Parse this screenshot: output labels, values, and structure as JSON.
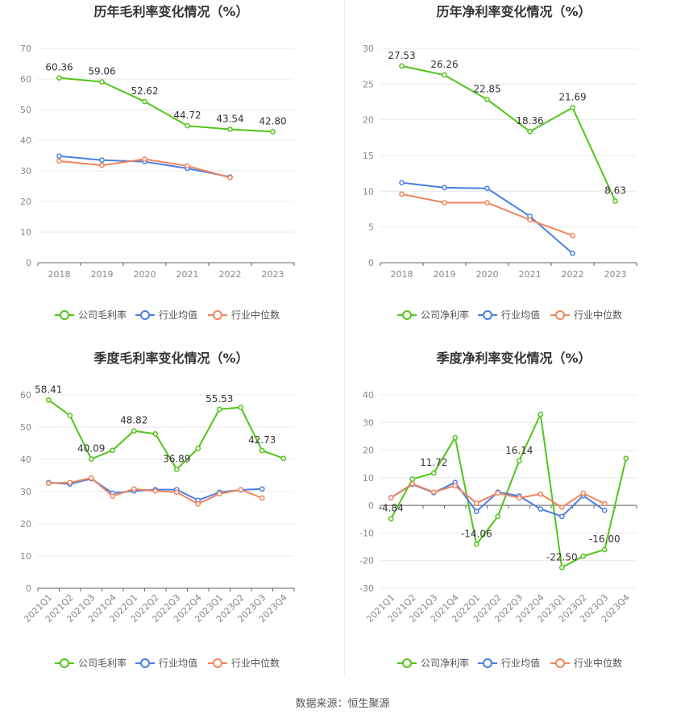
{
  "source_text": "数据来源：恒生聚源",
  "chart_data": [
    {
      "type": "line",
      "title": "历年毛利率变化情况（%）",
      "categories": [
        "2018",
        "2019",
        "2020",
        "2021",
        "2022",
        "2023"
      ],
      "ylim": [
        0,
        70
      ],
      "yticks": [
        0,
        10,
        20,
        30,
        40,
        50,
        60,
        70
      ],
      "grid": true,
      "legend_position": "bottom",
      "rotate_xticks": false,
      "series": [
        {
          "name": "公司毛利率",
          "color": "#52c41a",
          "values": [
            60.36,
            59.06,
            52.62,
            44.72,
            43.54,
            42.8
          ],
          "labels": [
            "60.36",
            "59.06",
            "52.62",
            "44.72",
            "43.54",
            "42.80"
          ]
        },
        {
          "name": "行业均值",
          "color": "#4a7fe0",
          "values": [
            34.8,
            33.5,
            33.0,
            30.8,
            28.0,
            null
          ]
        },
        {
          "name": "行业中位数",
          "color": "#f0845c",
          "values": [
            33.2,
            31.8,
            33.8,
            31.6,
            27.8,
            null
          ]
        }
      ]
    },
    {
      "type": "line",
      "title": "历年净利率变化情况（%）",
      "categories": [
        "2018",
        "2019",
        "2020",
        "2021",
        "2022",
        "2023"
      ],
      "ylim": [
        0,
        30
      ],
      "yticks": [
        0,
        5,
        10,
        15,
        20,
        25,
        30
      ],
      "grid": true,
      "legend_position": "bottom",
      "rotate_xticks": false,
      "series": [
        {
          "name": "公司净利率",
          "color": "#52c41a",
          "values": [
            27.53,
            26.26,
            22.85,
            18.36,
            21.69,
            8.63
          ],
          "labels": [
            "27.53",
            "26.26",
            "22.85",
            "18.36",
            "21.69",
            "8.63"
          ]
        },
        {
          "name": "行业均值",
          "color": "#4a7fe0",
          "values": [
            11.2,
            10.5,
            10.4,
            6.5,
            1.3,
            null
          ]
        },
        {
          "name": "行业中位数",
          "color": "#f0845c",
          "values": [
            9.6,
            8.4,
            8.4,
            6.0,
            3.8,
            null
          ]
        }
      ]
    },
    {
      "type": "line",
      "title": "季度毛利率变化情况（%）",
      "categories": [
        "2021Q1",
        "2021Q2",
        "2021Q3",
        "2021Q4",
        "2022Q1",
        "2022Q2",
        "2022Q3",
        "2022Q4",
        "2023Q1",
        "2023Q2",
        "2023Q3",
        "2023Q4"
      ],
      "ylim": [
        0,
        60
      ],
      "yticks": [
        0,
        10,
        20,
        30,
        40,
        50,
        60
      ],
      "grid": true,
      "legend_position": "bottom",
      "rotate_xticks": true,
      "series": [
        {
          "name": "公司毛利率",
          "color": "#52c41a",
          "values": [
            58.41,
            53.6,
            40.09,
            42.8,
            48.82,
            47.9,
            36.89,
            43.4,
            55.53,
            56.1,
            42.73,
            40.3
          ],
          "labels": [
            "58.41",
            "",
            "40.09",
            "",
            "48.82",
            "",
            "36.89",
            "",
            "55.53",
            "",
            "42.73",
            ""
          ]
        },
        {
          "name": "行业均值",
          "color": "#4a7fe0",
          "values": [
            32.8,
            32.3,
            34.0,
            29.5,
            30.2,
            30.6,
            30.6,
            27.3,
            29.8,
            30.5,
            30.8,
            null
          ]
        },
        {
          "name": "行业中位数",
          "color": "#f0845c",
          "values": [
            32.6,
            32.8,
            34.2,
            28.6,
            30.8,
            30.2,
            29.8,
            26.2,
            29.3,
            30.6,
            28.0,
            null
          ]
        }
      ]
    },
    {
      "type": "line",
      "title": "季度净利率变化情况（%）",
      "categories": [
        "2021Q1",
        "2021Q2",
        "2021Q3",
        "2021Q4",
        "2022Q1",
        "2022Q2",
        "2022Q3",
        "2022Q4",
        "2023Q1",
        "2023Q2",
        "2023Q3",
        "2023Q4"
      ],
      "ylim": [
        -30,
        40
      ],
      "yticks": [
        -30,
        -20,
        -10,
        0,
        10,
        20,
        30,
        40
      ],
      "grid": true,
      "legend_position": "bottom",
      "rotate_xticks": true,
      "series": [
        {
          "name": "公司净利率",
          "color": "#52c41a",
          "values": [
            -4.84,
            9.5,
            11.72,
            24.5,
            -14.06,
            -4.0,
            16.14,
            33.0,
            -22.5,
            -18.4,
            -16.0,
            17.0
          ],
          "labels": [
            "-4.84",
            "",
            "11.72",
            "",
            "-14.06",
            "",
            "16.14",
            "",
            "-22.50",
            "",
            "-16.00",
            ""
          ]
        },
        {
          "name": "行业均值",
          "color": "#4a7fe0",
          "values": [
            2.8,
            7.6,
            4.6,
            8.3,
            -2.2,
            4.8,
            3.4,
            -1.3,
            -4.0,
            3.5,
            -1.8,
            null
          ]
        },
        {
          "name": "行业中位数",
          "color": "#f0845c",
          "values": [
            2.8,
            7.8,
            4.8,
            7.1,
            0.8,
            4.5,
            2.7,
            4.1,
            -0.7,
            4.4,
            0.6,
            null
          ]
        }
      ]
    }
  ]
}
